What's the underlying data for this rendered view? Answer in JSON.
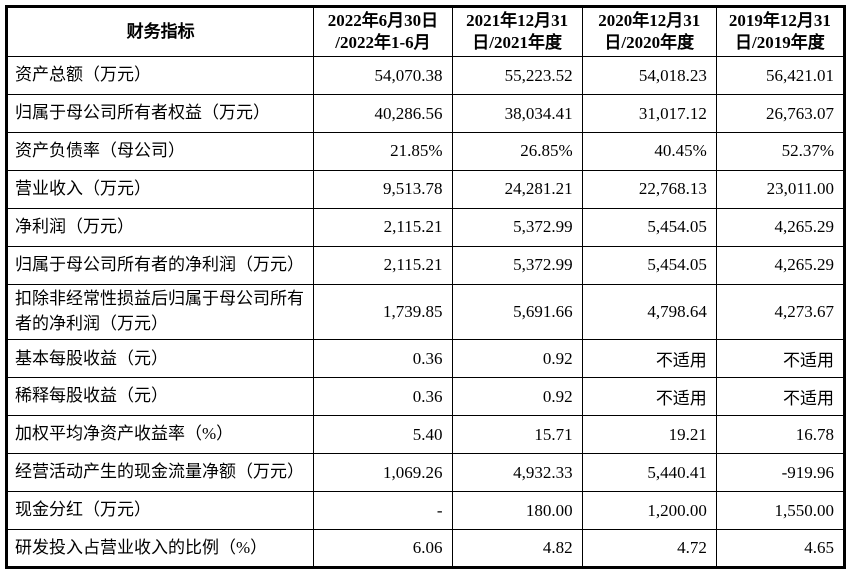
{
  "page": {
    "background": "#ffffff",
    "text_color": "#000000",
    "border_color": "#000000"
  },
  "table": {
    "header": {
      "indicator": "财务指标",
      "periods": [
        {
          "line1": "2022年6月30日",
          "line2": "/2022年1-6月"
        },
        {
          "line1": "2021年12月31",
          "line2": "日/2021年度"
        },
        {
          "line1": "2020年12月31",
          "line2": "日/2020年度"
        },
        {
          "line1": "2019年12月31",
          "line2": "日/2019年度"
        }
      ]
    },
    "rows": [
      {
        "label": "资产总额（万元）",
        "tall": false,
        "values": [
          "54,070.38",
          "55,223.52",
          "54,018.23",
          "56,421.01"
        ]
      },
      {
        "label": "归属于母公司所有者权益（万元）",
        "tall": false,
        "values": [
          "40,286.56",
          "38,034.41",
          "31,017.12",
          "26,763.07"
        ]
      },
      {
        "label": "资产负债率（母公司）",
        "tall": false,
        "values": [
          "21.85%",
          "26.85%",
          "40.45%",
          "52.37%"
        ]
      },
      {
        "label": "营业收入（万元）",
        "tall": false,
        "values": [
          "9,513.78",
          "24,281.21",
          "22,768.13",
          "23,011.00"
        ]
      },
      {
        "label": "净利润（万元）",
        "tall": false,
        "values": [
          "2,115.21",
          "5,372.99",
          "5,454.05",
          "4,265.29"
        ]
      },
      {
        "label": "归属于母公司所有者的净利润（万元）",
        "tall": false,
        "values": [
          "2,115.21",
          "5,372.99",
          "5,454.05",
          "4,265.29"
        ]
      },
      {
        "label": "扣除非经常性损益后归属于母公司所有者的净利润（万元）",
        "tall": true,
        "values": [
          "1,739.85",
          "5,691.66",
          "4,798.64",
          "4,273.67"
        ]
      },
      {
        "label": "基本每股收益（元）",
        "tall": false,
        "values": [
          "0.36",
          "0.92",
          "不适用",
          "不适用"
        ]
      },
      {
        "label": "稀释每股收益（元）",
        "tall": false,
        "values": [
          "0.36",
          "0.92",
          "不适用",
          "不适用"
        ]
      },
      {
        "label": "加权平均净资产收益率（%）",
        "tall": false,
        "values": [
          "5.40",
          "15.71",
          "19.21",
          "16.78"
        ]
      },
      {
        "label": "经营活动产生的现金流量净额（万元）",
        "tall": false,
        "values": [
          "1,069.26",
          "4,932.33",
          "5,440.41",
          "-919.96"
        ]
      },
      {
        "label": "现金分红（万元）",
        "tall": false,
        "values": [
          "-",
          "180.00",
          "1,200.00",
          "1,550.00"
        ]
      },
      {
        "label": "研发投入占营业收入的比例（%）",
        "tall": false,
        "values": [
          "6.06",
          "4.82",
          "4.72",
          "4.65"
        ]
      }
    ]
  }
}
